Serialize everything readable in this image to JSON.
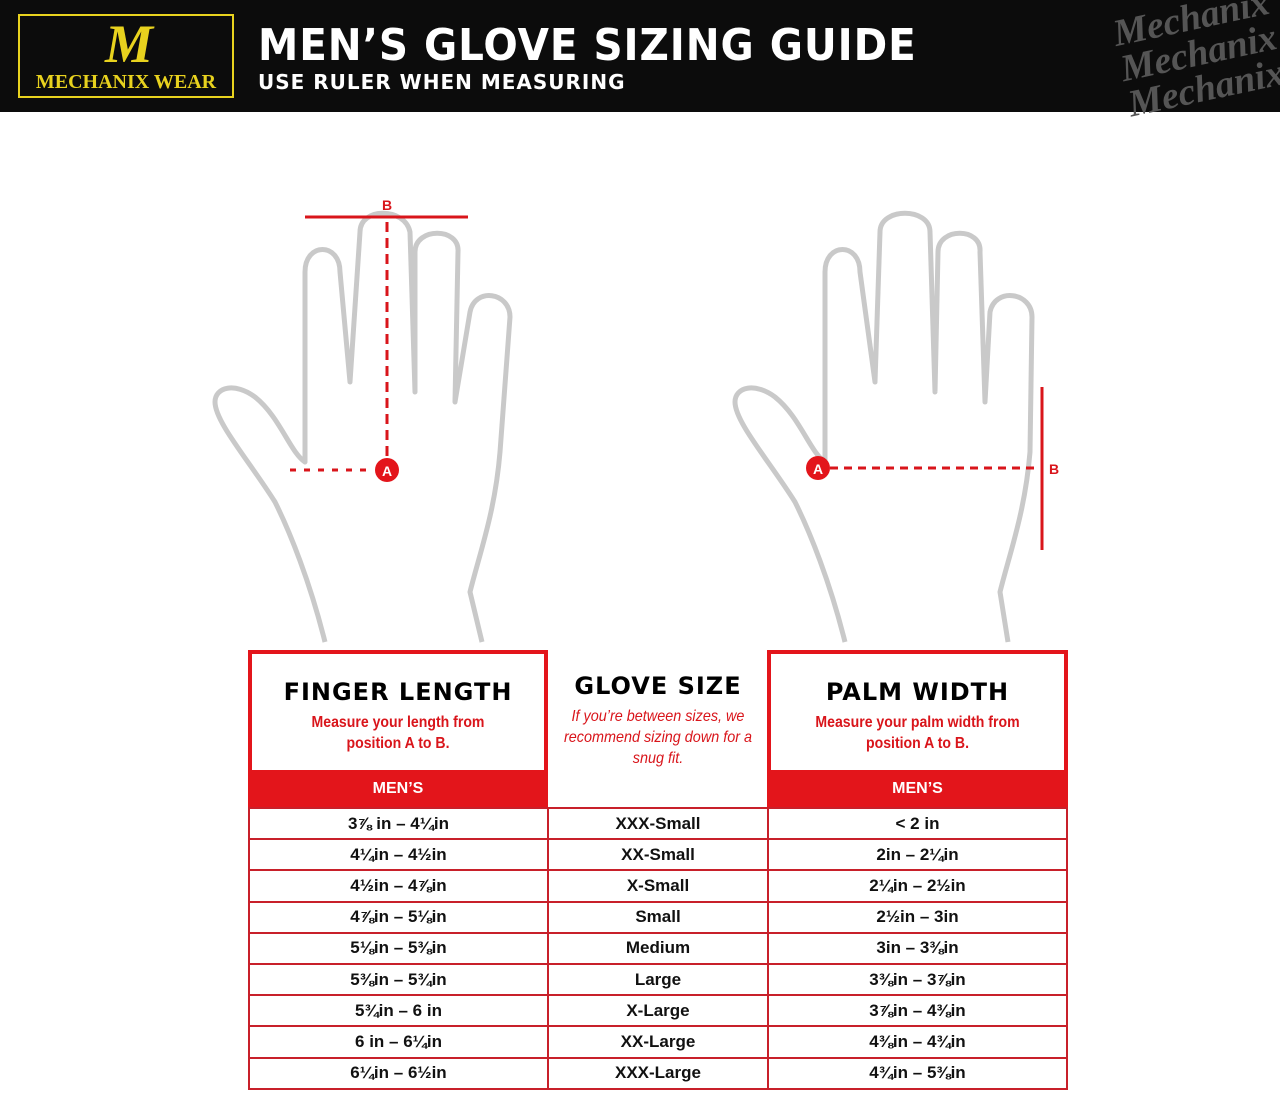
{
  "header": {
    "logo_mark": "M",
    "logo_text": "MECHANIX WEAR",
    "title": "MEN’S GLOVE SIZING GUIDE",
    "subtitle": "USE RULER WHEN MEASURING",
    "watermark": "Mechanix"
  },
  "diagram": {
    "finger": {
      "point_a": "A",
      "point_b": "B"
    },
    "palm": {
      "point_a": "A",
      "point_b": "B"
    }
  },
  "finger_length": {
    "title": "FINGER LENGTH",
    "description": "Measure your length from position A to B.",
    "column": "MEN’S"
  },
  "glove_size": {
    "title": "GLOVE SIZE",
    "description": "If you’re between sizes, we recommend sizing down for a snug fit."
  },
  "palm_width": {
    "title": "PALM WIDTH",
    "description": "Measure your palm width from position A to B.",
    "column": "MEN’S"
  },
  "rows": [
    {
      "finger": "3⅞ in – 4¼in",
      "size": "XXX-Small",
      "palm": "< 2 in"
    },
    {
      "finger": "4¼in – 4½in",
      "size": "XX-Small",
      "palm": "2in – 2¼in"
    },
    {
      "finger": "4½in – 4⅞in",
      "size": "X-Small",
      "palm": "2¼in – 2½in"
    },
    {
      "finger": "4⅞in – 5⅛in",
      "size": "Small",
      "palm": "2½in – 3in"
    },
    {
      "finger": "5⅛in – 5⅜in",
      "size": "Medium",
      "palm": "3in – 3⅜in"
    },
    {
      "finger": "5⅜in – 5¾in",
      "size": "Large",
      "palm": "3⅜in – 3⅞in"
    },
    {
      "finger": "5¾in – 6 in",
      "size": "X-Large",
      "palm": "3⅞in – 4⅜in"
    },
    {
      "finger": "6 in – 6¼in",
      "size": "XX-Large",
      "palm": "4⅜in – 4¾in"
    },
    {
      "finger": "6¼in – 6½in",
      "size": "XXX-Large",
      "palm": "4¾in – 5⅜in"
    }
  ],
  "colors": {
    "accent": "#e3151b",
    "logo": "#e8d21e",
    "header_bg": "#0c0c0c",
    "hand": "#c9c9c9"
  }
}
